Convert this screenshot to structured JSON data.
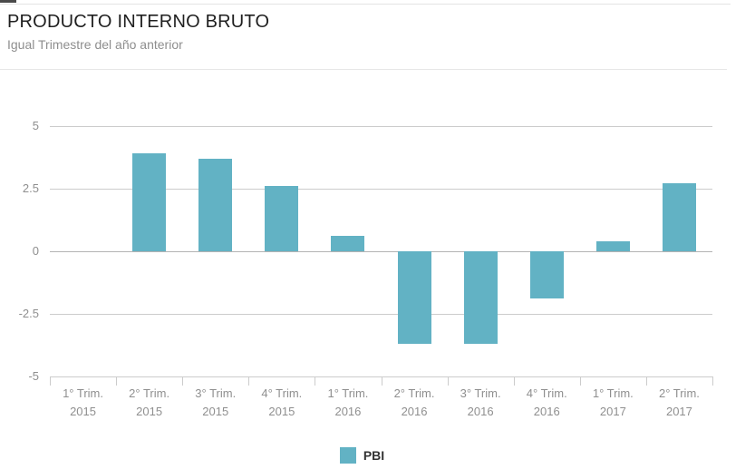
{
  "header": {
    "title": "PRODUCTO INTERNO BRUTO",
    "subtitle": "Igual Trimestre del año anterior"
  },
  "colors": {
    "bar": "#62b2c4",
    "grid": "#cccccc",
    "zero_line": "#b3b3b3",
    "axis_text": "#8f8f8f",
    "title_text": "#1f1f1f",
    "subtitle_text": "#8e8e8e"
  },
  "chart_data": {
    "type": "bar",
    "title": "PRODUCTO INTERNO BRUTO",
    "subtitle": "Igual Trimestre del año anterior",
    "categories": [
      "1° Trim. 2015",
      "2° Trim. 2015",
      "3° Trim. 2015",
      "4° Trim. 2015",
      "1° Trim. 2016",
      "2° Trim. 2016",
      "3° Trim. 2016",
      "4° Trim. 2016",
      "1° Trim. 2017",
      "2° Trim. 2017"
    ],
    "values": [
      0,
      3.9,
      3.7,
      2.6,
      0.6,
      -3.7,
      -3.7,
      -1.9,
      0.4,
      2.7
    ],
    "xlabel": "",
    "ylabel": "",
    "ylim": [
      -5,
      5
    ],
    "yticks": [
      5,
      2.5,
      0,
      -2.5,
      -5
    ],
    "grid": true,
    "legend": [
      "PBI"
    ],
    "legend_position": "bottom",
    "bar_color": "#62b2c4"
  }
}
